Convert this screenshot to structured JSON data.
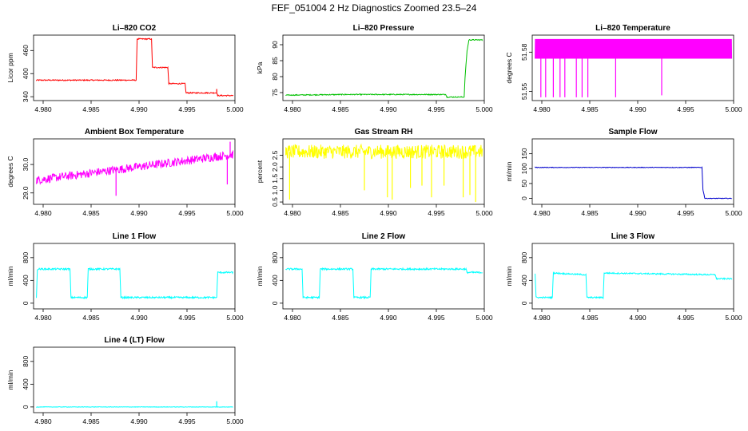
{
  "figure_title": "FEF_051004  2 Hz Diagnostics Zoomed 23.5–24",
  "chart_data": [
    {
      "id": "co2",
      "type": "line",
      "title": "Li–820 CO2",
      "ylabel": "Licor ppm",
      "color": "#ff0000",
      "xlim": [
        4.979,
        5.0
      ],
      "ylim": [
        330,
        500
      ],
      "xticks": [
        4.98,
        4.985,
        4.99,
        4.995,
        5.0
      ],
      "xtick_labels": [
        "4.980",
        "4.985",
        "4.990",
        "4.995",
        "5.000"
      ],
      "yticks": [
        340,
        400,
        460
      ],
      "ytick_labels": [
        "340",
        "400",
        "460"
      ],
      "noise": 1.5,
      "x": [
        4.9793,
        4.9897,
        4.9898,
        4.9913,
        4.9914,
        4.993,
        4.9931,
        4.9948,
        4.9949,
        4.9981,
        4.9982,
        4.9998
      ],
      "y": [
        383,
        383,
        490,
        490,
        416,
        416,
        374,
        374,
        350,
        350,
        343,
        343
      ],
      "spikes": [
        {
          "x": 4.9981,
          "y": 360
        }
      ]
    },
    {
      "id": "pressure",
      "type": "line",
      "title": "Li–820 Pressure",
      "ylabel": "kPa",
      "color": "#00c000",
      "xlim": [
        4.979,
        5.0
      ],
      "ylim": [
        72.5,
        93
      ],
      "xticks": [
        4.98,
        4.985,
        4.99,
        4.995,
        5.0
      ],
      "xtick_labels": [
        "4.980",
        "4.985",
        "4.990",
        "4.995",
        "5.000"
      ],
      "yticks": [
        75,
        80,
        85,
        90
      ],
      "ytick_labels": [
        "75",
        "80",
        "85",
        "90"
      ],
      "noise": 0.15,
      "x": [
        4.9793,
        4.9855,
        4.996,
        4.9961,
        4.9979,
        4.998,
        4.9982,
        4.9984,
        4.9998
      ],
      "y": [
        74.2,
        74.4,
        74.4,
        73.6,
        73.6,
        80,
        88,
        91.5,
        91.5
      ],
      "spikes": []
    },
    {
      "id": "temperature",
      "type": "line",
      "title": "Li–820 Temperature",
      "ylabel": "degrees C",
      "color": "#ff00ff",
      "xlim": [
        4.979,
        5.0
      ],
      "ylim": [
        51.543,
        51.593
      ],
      "xticks": [
        4.98,
        4.985,
        4.99,
        4.995,
        5.0
      ],
      "xtick_labels": [
        "4.980",
        "4.985",
        "4.990",
        "4.995",
        "5.000"
      ],
      "yticks": [
        51.55,
        51.58
      ],
      "ytick_labels": [
        "51.55",
        "51.58"
      ],
      "noise": 0,
      "x": [
        4.9793,
        4.9998
      ],
      "y": [
        51.575,
        51.575
      ],
      "band": [
        51.575,
        51.59
      ],
      "spikes": [
        {
          "x": 4.9799,
          "y": 51.5455
        },
        {
          "x": 4.9804,
          "y": 51.5455
        },
        {
          "x": 4.9812,
          "y": 51.5455
        },
        {
          "x": 4.9819,
          "y": 51.5455
        },
        {
          "x": 4.9824,
          "y": 51.5455
        },
        {
          "x": 4.9836,
          "y": 51.5455
        },
        {
          "x": 4.9842,
          "y": 51.5455
        },
        {
          "x": 4.9848,
          "y": 51.5455
        },
        {
          "x": 4.9877,
          "y": 51.5455
        },
        {
          "x": 4.9925,
          "y": 51.547
        }
      ]
    },
    {
      "id": "box_temp",
      "type": "line",
      "title": "Ambient Box Temperature",
      "ylabel": "degrees C",
      "color": "#ff00ff",
      "xlim": [
        4.979,
        5.0
      ],
      "ylim": [
        28.6,
        30.9
      ],
      "xticks": [
        4.98,
        4.985,
        4.99,
        4.995,
        5.0
      ],
      "xtick_labels": [
        "4.980",
        "4.985",
        "4.990",
        "4.995",
        "5.000"
      ],
      "yticks": [
        29.0,
        30.0
      ],
      "ytick_labels": [
        "29.0",
        "30.0"
      ],
      "noise": 0.15,
      "x": [
        4.9793,
        4.9998
      ],
      "y": [
        29.45,
        30.35
      ],
      "spikes": [
        {
          "x": 4.9876,
          "y": 28.9
        },
        {
          "x": 4.9992,
          "y": 29.3
        },
        {
          "x": 4.9995,
          "y": 30.8
        }
      ]
    },
    {
      "id": "rh",
      "type": "line",
      "title": "Gas Stream RH",
      "ylabel": "percent",
      "color": "#ffff00",
      "xlim": [
        4.979,
        5.0
      ],
      "ylim": [
        0.4,
        3.2
      ],
      "xticks": [
        4.98,
        4.985,
        4.99,
        4.995,
        5.0
      ],
      "xtick_labels": [
        "4.980",
        "4.985",
        "4.990",
        "4.995",
        "5.000"
      ],
      "yticks": [
        0.5,
        1.0,
        1.5,
        2.0,
        2.5
      ],
      "ytick_labels": [
        "0.5",
        "1.0",
        "1.5",
        "2.0",
        "2.5"
      ],
      "noise": 0.3,
      "x": [
        4.9793,
        4.9998
      ],
      "y": [
        2.65,
        2.65
      ],
      "spikes": [
        {
          "x": 4.9797,
          "y": 0.6
        },
        {
          "x": 4.9875,
          "y": 1.0
        },
        {
          "x": 4.9899,
          "y": 0.7
        },
        {
          "x": 4.9904,
          "y": 0.6
        },
        {
          "x": 4.9923,
          "y": 1.1
        },
        {
          "x": 4.9935,
          "y": 1.2
        },
        {
          "x": 4.9945,
          "y": 0.7
        },
        {
          "x": 4.9958,
          "y": 1.2
        },
        {
          "x": 4.9978,
          "y": 0.7
        },
        {
          "x": 4.9985,
          "y": 0.8
        },
        {
          "x": 4.9991,
          "y": 0.5
        }
      ]
    },
    {
      "id": "sample_flow",
      "type": "line",
      "title": "Sample Flow",
      "ylabel": "ml/min",
      "color": "#0000cc",
      "xlim": [
        4.979,
        5.0
      ],
      "ylim": [
        -20,
        200
      ],
      "xticks": [
        4.98,
        4.985,
        4.99,
        4.995,
        5.0
      ],
      "xtick_labels": [
        "4.980",
        "4.985",
        "4.990",
        "4.995",
        "5.000"
      ],
      "yticks": [
        0,
        50,
        100,
        150
      ],
      "ytick_labels": [
        "0",
        "50",
        "100",
        "150"
      ],
      "noise": 1,
      "x": [
        4.9793,
        4.9967,
        4.9968,
        4.997,
        4.9998
      ],
      "y": [
        104,
        104,
        30,
        0,
        0
      ],
      "spikes": []
    },
    {
      "id": "line1",
      "type": "line",
      "title": "Line 1 Flow",
      "ylabel": "ml/min",
      "color": "#00ffff",
      "xlim": [
        4.979,
        5.0
      ],
      "ylim": [
        -100,
        1050
      ],
      "xticks": [
        4.98,
        4.985,
        4.99,
        4.995,
        5.0
      ],
      "xtick_labels": [
        "4.980",
        "4.985",
        "4.990",
        "4.995",
        "5.000"
      ],
      "yticks": [
        0,
        400,
        800
      ],
      "ytick_labels": [
        "0",
        "400",
        "800"
      ],
      "noise": 15,
      "x": [
        4.9793,
        4.9794,
        4.9828,
        4.9829,
        4.9846,
        4.9847,
        4.988,
        4.9881,
        4.9981,
        4.9982,
        4.9998
      ],
      "y": [
        100,
        600,
        600,
        100,
        100,
        600,
        600,
        100,
        100,
        540,
        540
      ],
      "spikes": []
    },
    {
      "id": "line2",
      "type": "line",
      "title": "Line 2 Flow",
      "ylabel": "ml/min",
      "color": "#00ffff",
      "xlim": [
        4.979,
        5.0
      ],
      "ylim": [
        -100,
        1050
      ],
      "xticks": [
        4.98,
        4.985,
        4.99,
        4.995,
        5.0
      ],
      "xtick_labels": [
        "4.980",
        "4.985",
        "4.990",
        "4.995",
        "5.000"
      ],
      "yticks": [
        0,
        400,
        800
      ],
      "ytick_labels": [
        "0",
        "400",
        "800"
      ],
      "noise": 15,
      "x": [
        4.9793,
        4.981,
        4.9811,
        4.9828,
        4.9829,
        4.9863,
        4.9864,
        4.9881,
        4.9882,
        4.9981,
        4.9982,
        4.9998
      ],
      "y": [
        600,
        600,
        100,
        100,
        600,
        600,
        100,
        100,
        600,
        600,
        540,
        540
      ],
      "spikes": []
    },
    {
      "id": "line3",
      "type": "line",
      "title": "Line 3 Flow",
      "ylabel": "ml/min",
      "color": "#00ffff",
      "xlim": [
        4.979,
        5.0
      ],
      "ylim": [
        -100,
        1050
      ],
      "xticks": [
        4.98,
        4.985,
        4.99,
        4.995,
        5.0
      ],
      "xtick_labels": [
        "4.980",
        "4.985",
        "4.990",
        "4.995",
        "5.000"
      ],
      "yticks": [
        0,
        400,
        800
      ],
      "ytick_labels": [
        "0",
        "400",
        "800"
      ],
      "noise": 12,
      "x": [
        4.9793,
        4.9794,
        4.9811,
        4.9812,
        4.9846,
        4.9847,
        4.9864,
        4.9865,
        4.9981,
        4.9982,
        4.9998
      ],
      "y": [
        520,
        100,
        100,
        530,
        500,
        100,
        100,
        530,
        500,
        430,
        430
      ],
      "spikes": []
    },
    {
      "id": "line4",
      "type": "line",
      "title": "Line 4 (LT) Flow",
      "ylabel": "ml/min",
      "color": "#00ffff",
      "xlim": [
        4.979,
        5.0
      ],
      "ylim": [
        -100,
        1050
      ],
      "xticks": [
        4.98,
        4.985,
        4.99,
        4.995,
        5.0
      ],
      "xtick_labels": [
        "4.980",
        "4.985",
        "4.990",
        "4.995",
        "5.000"
      ],
      "yticks": [
        0,
        400,
        800
      ],
      "ytick_labels": [
        "0",
        "400",
        "800"
      ],
      "noise": 4,
      "x": [
        4.9793,
        4.9998
      ],
      "y": [
        0,
        0
      ],
      "spikes": [
        {
          "x": 4.9981,
          "y": 100
        }
      ]
    }
  ]
}
